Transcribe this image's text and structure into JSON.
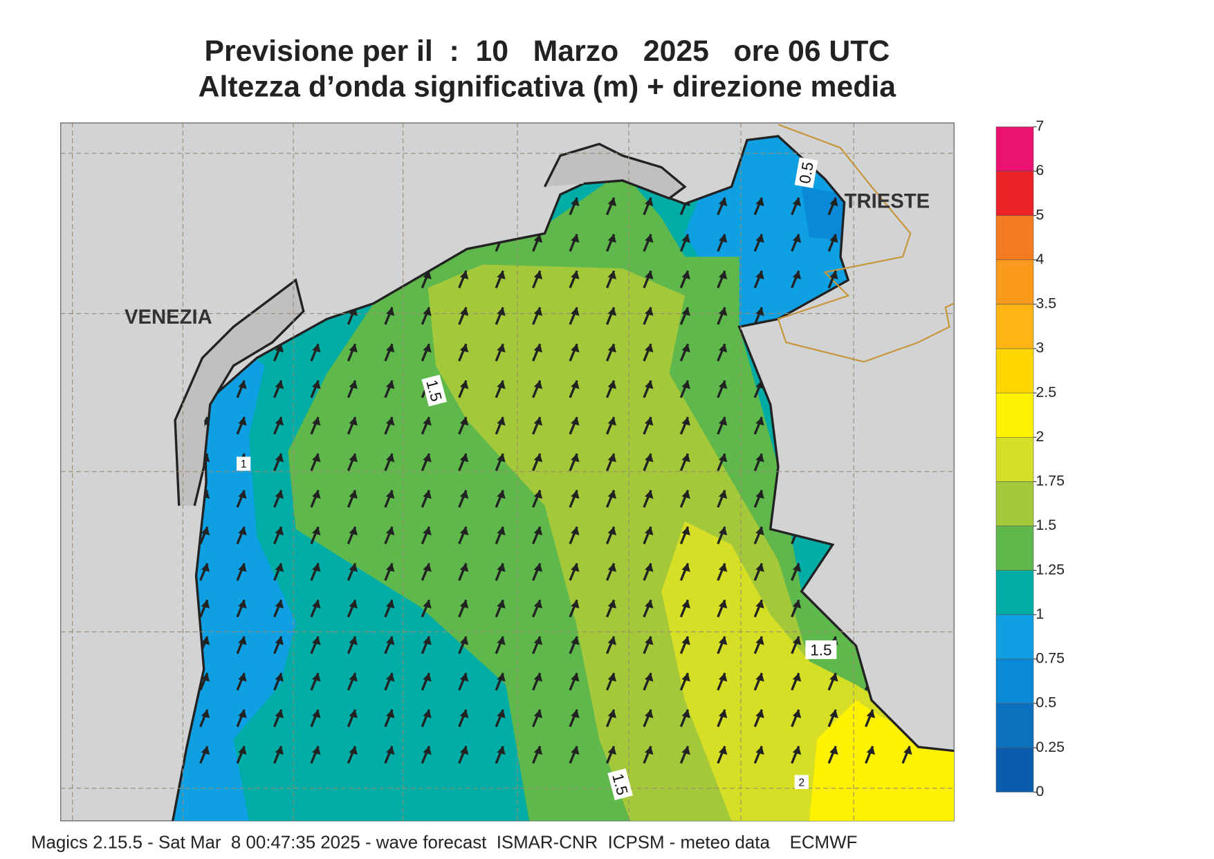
{
  "title": [
    "Previsione per il  :  10   Marzo   2025   ore 06 UTC",
    "Altezza d’onda significativa (m) + direzione media"
  ],
  "labels": {
    "cities": [
      "VENEZIA",
      "TRIESTE"
    ],
    "contours": [
      "0.5",
      "1.5",
      "1.5",
      "1.5",
      "1",
      "2"
    ]
  },
  "colorbar": {
    "levels": [
      0,
      0.25,
      0.5,
      0.75,
      1,
      1.25,
      1.5,
      1.75,
      2,
      2.5,
      3,
      3.5,
      4,
      5,
      6,
      7
    ],
    "colors": [
      "#0a5cad",
      "#0c72c0",
      "#0a8ad6",
      "#0ea0e2",
      "#00aca6",
      "#5fb84b",
      "#a3c93a",
      "#d7de26",
      "#fff200",
      "#ffd700",
      "#fdb515",
      "#f99a1c",
      "#f47b20",
      "#ec2227",
      "#ec1271"
    ]
  },
  "footer": "Magics 2.15.5 - Sat Mar  8 00:47:35 2025 - wave forecast  ISMAR-CNR  ICPSM - meteo data    ECMWF"
}
